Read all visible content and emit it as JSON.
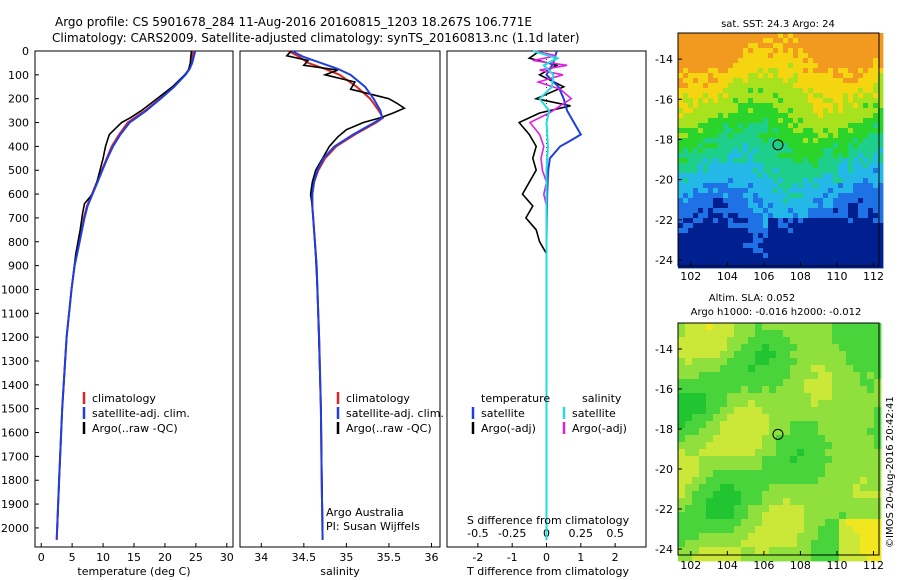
{
  "header": {
    "line1": "Argo profile: CS 5901678_284 11-Aug-2016 20160815_1203 18.267S 106.771E",
    "line2": "Climatology: CARS2009. Satellite-adjusted climatology: synTS_20160813.nc (1.1d later)"
  },
  "colors": {
    "climatology": "#d62728",
    "satellite": "#1f3fe0",
    "argo": "#000000",
    "argo_salinity_diff": "#e020e0",
    "satellite_salinity_diff": "#22dddd"
  },
  "chart_data": [
    {
      "type": "line",
      "id": "temperature",
      "xlabel": "temperature (deg C)",
      "xlim": [
        -1,
        31
      ],
      "xticks": [
        0,
        5,
        10,
        15,
        20,
        25,
        30
      ],
      "ylim": [
        2080,
        0
      ],
      "yticks": [
        0,
        100,
        200,
        300,
        400,
        500,
        600,
        700,
        800,
        900,
        1000,
        1100,
        1200,
        1300,
        1400,
        1500,
        1600,
        1700,
        1800,
        1900,
        2000
      ],
      "legend": [
        "climatology",
        "satellite-adj. clim.",
        "Argo(..raw -QC)"
      ],
      "series": [
        {
          "name": "climatology",
          "depth": [
            0,
            20,
            50,
            75,
            100,
            150,
            200,
            250,
            300,
            350,
            400,
            450,
            500,
            550,
            600,
            650,
            700,
            800,
            900,
            1000,
            1200,
            1500,
            1800,
            2050
          ],
          "values": [
            24.6,
            24.4,
            24.2,
            23.9,
            23.3,
            21.4,
            19.2,
            16.8,
            14.0,
            12.6,
            11.4,
            10.6,
            9.8,
            9.0,
            8.2,
            7.4,
            6.9,
            6.2,
            5.4,
            4.9,
            4.1,
            3.4,
            2.9,
            2.5
          ]
        },
        {
          "name": "satellite-adj. clim.",
          "depth": [
            0,
            20,
            50,
            75,
            100,
            150,
            200,
            250,
            300,
            350,
            400,
            450,
            500,
            550,
            600,
            650,
            700,
            800,
            900,
            1000,
            1200,
            1500,
            1800,
            2050
          ],
          "values": [
            24.9,
            24.7,
            24.4,
            24.0,
            23.3,
            21.5,
            19.3,
            17.0,
            14.3,
            12.8,
            11.6,
            10.7,
            9.9,
            9.1,
            8.3,
            7.5,
            7.0,
            6.2,
            5.4,
            4.9,
            4.1,
            3.4,
            2.9,
            2.5
          ]
        },
        {
          "name": "Argo(..raw -QC)",
          "depth": [
            0,
            20,
            50,
            80,
            100,
            150,
            200,
            250,
            280,
            300,
            350,
            400,
            450,
            500,
            550,
            600,
            640,
            680,
            750,
            850,
            1000,
            1200,
            1500,
            1800,
            2000
          ],
          "values": [
            24.3,
            24.2,
            24.1,
            23.8,
            23.2,
            21.2,
            18.7,
            16.2,
            14.4,
            13.0,
            11.0,
            10.4,
            10.0,
            9.5,
            9.0,
            8.3,
            7.0,
            6.7,
            6.3,
            5.6,
            4.9,
            4.1,
            3.4,
            2.9,
            2.6
          ]
        }
      ],
      "annotations": []
    },
    {
      "type": "line",
      "id": "salinity",
      "xlabel": "salinity",
      "xlim": [
        33.75,
        36.1
      ],
      "xticks": [
        34,
        34.5,
        35,
        35.5,
        36
      ],
      "ylim": [
        2080,
        0
      ],
      "legend": [
        "climatology",
        "satellite-adj. clim.",
        "Argo(..raw -QC)"
      ],
      "series": [
        {
          "name": "climatology",
          "depth": [
            0,
            25,
            50,
            75,
            100,
            150,
            200,
            250,
            280,
            300,
            350,
            400,
            450,
            500,
            550,
            600,
            650,
            700,
            800,
            900,
            1000,
            1200,
            1500,
            1800,
            2050
          ],
          "values": [
            34.32,
            34.45,
            34.55,
            34.75,
            34.92,
            35.12,
            35.28,
            35.38,
            35.43,
            35.35,
            35.1,
            34.88,
            34.75,
            34.67,
            34.62,
            34.6,
            34.6,
            34.61,
            34.63,
            34.65,
            34.66,
            34.68,
            34.7,
            34.71,
            34.72
          ]
        },
        {
          "name": "satellite-adj. clim.",
          "depth": [
            0,
            25,
            50,
            75,
            100,
            150,
            200,
            250,
            280,
            300,
            350,
            400,
            450,
            500,
            550,
            600,
            650,
            700,
            800,
            900,
            1000,
            1200,
            1500,
            1800,
            2050
          ],
          "values": [
            34.36,
            34.5,
            34.7,
            34.9,
            35.05,
            35.22,
            35.32,
            35.4,
            35.42,
            35.33,
            35.08,
            34.86,
            34.73,
            34.66,
            34.62,
            34.6,
            34.6,
            34.61,
            34.63,
            34.65,
            34.66,
            34.68,
            34.7,
            34.71,
            34.72
          ]
        },
        {
          "name": "Argo(..raw -QC)",
          "depth": [
            0,
            20,
            40,
            60,
            80,
            100,
            130,
            160,
            200,
            220,
            240,
            260,
            280,
            300,
            330,
            360,
            400,
            450,
            500,
            550,
            600,
            650,
            700,
            800,
            1000,
            1500,
            2000
          ],
          "values": [
            34.35,
            34.3,
            34.55,
            34.5,
            34.9,
            34.75,
            35.1,
            35.05,
            35.5,
            35.6,
            35.68,
            35.55,
            35.4,
            35.2,
            35.0,
            34.9,
            34.8,
            34.72,
            34.64,
            34.6,
            34.58,
            34.6,
            34.61,
            34.63,
            34.66,
            34.7,
            34.72
          ]
        }
      ],
      "annotations": [
        "Argo Australia",
        "PI: Susan Wijffels"
      ]
    },
    {
      "type": "line",
      "id": "difference",
      "xlabel": "T difference from climatology",
      "xlim": [
        -2.9,
        2.9
      ],
      "xticks": [
        -2,
        -1,
        0,
        1,
        2
      ],
      "top_axis_label": "S difference from climatology",
      "top_xlim": [
        -0.725,
        0.725
      ],
      "top_xticks": [
        -0.5,
        -0.25,
        0,
        0.25,
        0.5
      ],
      "top_xtick_labels": [
        "-0.5",
        "-0.25",
        "0",
        "0.25",
        "0.5"
      ],
      "ylim": [
        2080,
        0
      ],
      "legend_groups": [
        {
          "title": "temperature",
          "entries": [
            "satellite",
            "Argo(-adj)"
          ]
        },
        {
          "title": "salinity",
          "entries": [
            "satellite",
            "Argo(-adj)"
          ]
        }
      ],
      "series": [
        {
          "name": "temperature satellite",
          "depth": [
            0,
            50,
            100,
            150,
            200,
            250,
            300,
            350,
            380,
            400,
            450,
            500,
            600,
            700,
            800,
            1000,
            1500,
            2050
          ],
          "values": [
            0.3,
            0.2,
            0.0,
            0.35,
            0.5,
            0.6,
            0.8,
            1.0,
            0.65,
            0.4,
            0.1,
            0.05,
            0.02,
            0.01,
            0.0,
            0.0,
            0.0,
            0.0
          ]
        },
        {
          "name": "temperature Argo(-adj)",
          "depth": [
            0,
            30,
            60,
            100,
            150,
            200,
            230,
            260,
            300,
            350,
            400,
            450,
            500,
            550,
            600,
            650,
            700,
            750,
            800,
            850,
            1000,
            1500,
            2000
          ],
          "values": [
            -0.2,
            -0.5,
            0.3,
            -0.2,
            0.5,
            -0.3,
            0.7,
            -0.2,
            -0.8,
            -0.5,
            -0.3,
            -0.4,
            -0.3,
            -0.5,
            -0.7,
            -0.4,
            -0.6,
            -0.3,
            -0.2,
            0.0,
            0.0,
            0.0,
            0.0
          ]
        },
        {
          "name": "salinity satellite",
          "depth": [
            0,
            30,
            60,
            100,
            150,
            200,
            250,
            300,
            400,
            500,
            700,
            1000,
            1500,
            2050
          ],
          "values": [
            -0.1,
            0.08,
            -0.02,
            0.05,
            0.04,
            -0.05,
            0.02,
            0.0,
            0.01,
            0.0,
            0.0,
            0.0,
            0.0,
            0.0
          ]
        },
        {
          "name": "salinity Argo(-adj)",
          "depth": [
            0,
            20,
            40,
            60,
            80,
            100,
            130,
            160,
            200,
            230,
            260,
            300,
            350,
            400,
            450,
            500,
            550,
            600,
            650,
            700,
            800,
            1000,
            1500,
            2000
          ],
          "values": [
            -0.08,
            0.07,
            -0.1,
            0.15,
            -0.05,
            0.12,
            -0.06,
            0.1,
            0.18,
            0.1,
            0.02,
            -0.12,
            -0.05,
            -0.02,
            -0.04,
            -0.03,
            0.0,
            -0.02,
            0.0,
            0.0,
            0.0,
            0.0,
            0.0,
            0.0
          ]
        }
      ],
      "annotations": []
    },
    {
      "type": "heatmap",
      "id": "sst-map",
      "title": "sat. SST: 24.3 Argo: 24",
      "xlim": [
        101.3,
        112.3
      ],
      "xticks": [
        102,
        104,
        106,
        108,
        110,
        112
      ],
      "ylim": [
        -24.3,
        -12.7
      ],
      "yticks": [
        -14,
        -16,
        -18,
        -20,
        -22,
        -24
      ],
      "marker": {
        "lon": 106.771,
        "lat": -18.267
      },
      "colormap": [
        "#00208f",
        "#1e72e6",
        "#23b8e8",
        "#1ecf8c",
        "#2bd42a",
        "#a8e21f",
        "#f5d510",
        "#f29a1f"
      ]
    },
    {
      "type": "heatmap",
      "id": "sla-map",
      "title": "Altim. SLA: 0.052",
      "subtitle": "Argo h1000: -0.016 h2000: -0.012",
      "xlim": [
        101.3,
        112.3
      ],
      "xticks": [
        102,
        104,
        106,
        108,
        110,
        112
      ],
      "ylim": [
        -24.3,
        -12.7
      ],
      "yticks": [
        -14,
        -16,
        -18,
        -20,
        -22,
        -24
      ],
      "marker": {
        "lon": 106.771,
        "lat": -18.267
      },
      "colormap": [
        "#21c431",
        "#48d43a",
        "#8fe03c",
        "#cbe838",
        "#f2e61e",
        "#f6cf1a"
      ]
    }
  ],
  "side_credit": "©IMOS 20-Aug-2016 20:42:41"
}
